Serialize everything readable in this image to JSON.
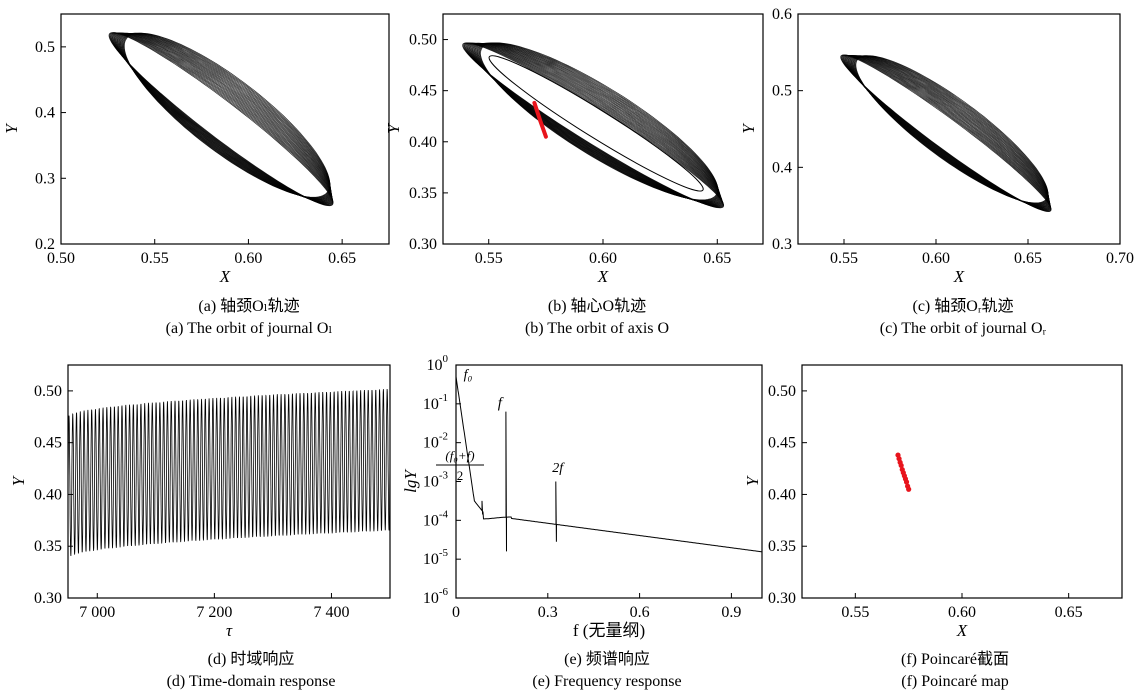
{
  "panels": [
    {
      "caption_cn": "(a)  轴颈Oₗ轨迹",
      "caption_en": "(a)  The orbit of journal Oₗ"
    },
    {
      "caption_cn": "(b)  轴心O轨迹",
      "caption_en": "(b)  The orbit of axis O"
    },
    {
      "caption_cn": "(c)  轴颈Oᵣ轨迹",
      "caption_en": "(c)  The orbit of journal Oᵣ"
    },
    {
      "caption_cn": "(d)  时域响应",
      "caption_en": "(d)  Time-domain response"
    },
    {
      "caption_cn": "(e)  频谱响应",
      "caption_en": "(e)  Frequency response"
    },
    {
      "caption_cn": "(f)  Poincaré截面",
      "caption_en": "(f)  Poincaré map"
    }
  ],
  "chart_data": [
    {
      "id": "a",
      "type": "line",
      "title": "",
      "xlabel": "X",
      "ylabel": "Y",
      "xlim": [
        0.5,
        0.675
      ],
      "ylim": [
        0.2,
        0.55
      ],
      "xticks": [
        0.5,
        0.55,
        0.6,
        0.65
      ],
      "xtick_labels": [
        "0.50",
        "0.55",
        "0.60",
        "0.65"
      ],
      "yticks": [
        0.2,
        0.3,
        0.4,
        0.5
      ],
      "ytick_labels": [
        "0.2",
        "0.3",
        "0.4",
        "0.5"
      ],
      "orbit": {
        "center": [
          0.587,
          0.393
        ],
        "upper_left": [
          0.528,
          0.522
        ],
        "lower_right": [
          0.647,
          0.262
        ],
        "minor_half_width": 0.05
      },
      "series": [
        {
          "color": "#000000"
        }
      ]
    },
    {
      "id": "b",
      "type": "line",
      "title": "",
      "xlabel": "X",
      "ylabel": "Y",
      "xlim": [
        0.53,
        0.67
      ],
      "ylim": [
        0.3,
        0.525
      ],
      "xticks": [
        0.55,
        0.6,
        0.65
      ],
      "xtick_labels": [
        "0.55",
        "0.60",
        "0.65"
      ],
      "yticks": [
        0.3,
        0.35,
        0.4,
        0.45,
        0.5
      ],
      "ytick_labels": [
        "0.30",
        "0.35",
        "0.40",
        "0.45",
        "0.50"
      ],
      "orbit": {
        "center": [
          0.597,
          0.418
        ],
        "upper_left": [
          0.54,
          0.498
        ],
        "lower_right": [
          0.654,
          0.339
        ],
        "minor_half_width": 0.03
      },
      "series": [
        {
          "color": "#000000"
        }
      ],
      "poincare_points": {
        "x": [
          0.57,
          0.5725,
          0.575
        ],
        "y": [
          0.438,
          0.421,
          0.405
        ],
        "color": "#e8141c"
      }
    },
    {
      "id": "c",
      "type": "line",
      "title": "",
      "xlabel": "X",
      "ylabel": "Y",
      "xlim": [
        0.525,
        0.7
      ],
      "ylim": [
        0.3,
        0.6
      ],
      "xticks": [
        0.55,
        0.6,
        0.65,
        0.7
      ],
      "xtick_labels": [
        "0.55",
        "0.60",
        "0.65",
        "0.70"
      ],
      "yticks": [
        0.3,
        0.4,
        0.5,
        0.6
      ],
      "ytick_labels": [
        "0.3",
        "0.4",
        "0.5",
        "0.6"
      ],
      "orbit": {
        "center": [
          0.607,
          0.447
        ],
        "upper_left": [
          0.55,
          0.547
        ],
        "lower_right": [
          0.664,
          0.345
        ],
        "minor_half_width": 0.035
      },
      "series": [
        {
          "color": "#000000"
        }
      ]
    },
    {
      "id": "d",
      "type": "line",
      "title": "",
      "xlabel": "τ",
      "ylabel": "Y",
      "xlim": [
        6950,
        7500
      ],
      "ylim": [
        0.3,
        0.525
      ],
      "xticks": [
        7000,
        7200,
        7400
      ],
      "xtick_labels": [
        "7 000",
        "7 200",
        "7 400"
      ],
      "yticks": [
        0.3,
        0.35,
        0.4,
        0.45,
        0.5
      ],
      "ytick_labels": [
        "0.30",
        "0.35",
        "0.40",
        "0.45",
        "0.50"
      ],
      "oscillation": {
        "cycles": 85,
        "max_start": 0.475,
        "max_end": 0.502,
        "min_start": 0.338,
        "min_end": 0.365
      },
      "series": [
        {
          "color": "#000000"
        }
      ]
    },
    {
      "id": "e",
      "type": "line",
      "title": "",
      "xlabel": "f (无量纲)",
      "ylabel": "lgY",
      "xlim": [
        0,
        1.0
      ],
      "ylim": [
        -6,
        0
      ],
      "yscale": "log",
      "xticks": [
        0,
        0.3,
        0.6,
        0.9
      ],
      "xtick_labels": [
        "0",
        "0.3",
        "0.6",
        "0.9"
      ],
      "yticks": [
        -6,
        -5,
        -4,
        -3,
        -2,
        -1,
        0
      ],
      "ytick_labels": [
        "10",
        "10",
        "10",
        "10",
        "10",
        "10",
        "10"
      ],
      "ytick_exponents": [
        "-6",
        "-5",
        "-4",
        "-3",
        "-2",
        "-1",
        "0"
      ],
      "peaks": [
        {
          "label": "f₀",
          "x": 0.0,
          "lg": -0.3
        },
        {
          "label_num": "(f₀+f)",
          "label_den": "2",
          "x": 0.085,
          "lg": -3.5
        },
        {
          "label": "f",
          "x": 0.163,
          "lg": -1.2
        },
        {
          "label": "2f",
          "x": 0.326,
          "lg": -3.0
        }
      ],
      "series": [
        {
          "color": "#000000"
        }
      ]
    },
    {
      "id": "f",
      "type": "scatter",
      "title": "",
      "xlabel": "X",
      "ylabel": "Y",
      "xlim": [
        0.525,
        0.675
      ],
      "ylim": [
        0.3,
        0.525
      ],
      "xticks": [
        0.55,
        0.6,
        0.65
      ],
      "xtick_labels": [
        "0.55",
        "0.60",
        "0.65"
      ],
      "yticks": [
        0.3,
        0.35,
        0.4,
        0.45,
        0.5
      ],
      "ytick_labels": [
        "0.30",
        "0.35",
        "0.40",
        "0.45",
        "0.50"
      ],
      "x": [
        0.57,
        0.5705,
        0.571,
        0.5715,
        0.572,
        0.5725,
        0.573,
        0.5735,
        0.574,
        0.5745,
        0.575
      ],
      "y": [
        0.438,
        0.4345,
        0.431,
        0.428,
        0.424,
        0.421,
        0.418,
        0.415,
        0.412,
        0.408,
        0.405
      ],
      "series": [
        {
          "color": "#e8141c"
        }
      ]
    }
  ]
}
